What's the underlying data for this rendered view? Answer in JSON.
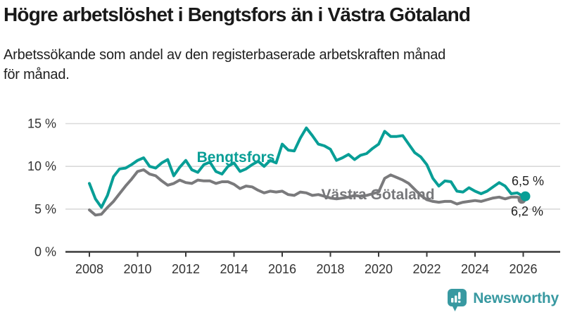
{
  "page": {
    "title": "Högre arbetslöshet i Bengtsfors än i Västra Götaland",
    "subtitle_lines": [
      "Arbetssökande som andel av den registerbaserade arbetskraften månad",
      "för månad."
    ]
  },
  "branding": {
    "wordmark": "Newsworthy",
    "icon": "bar-chart-speech-bubble",
    "color": "#3899a1"
  },
  "chart_data": {
    "type": "line",
    "title": "Högre arbetslöshet i Bengtsfors än i Västra Götaland",
    "subtitle": "Arbetssökande som andel av den registerbaserade arbetskraften månad för månad.",
    "unit": "percent of registered labour force",
    "grid": true,
    "legend_position": "inline-labels",
    "x_axis": {
      "tick_labels": [
        "2008",
        "2010",
        "2012",
        "2014",
        "2016",
        "2018",
        "2020",
        "2022",
        "2024",
        "2026"
      ],
      "tick_years": [
        2008,
        2010,
        2012,
        2014,
        2016,
        2018,
        2020,
        2022,
        2024,
        2026
      ],
      "range": [
        2008,
        2026.25
      ]
    },
    "y_axis": {
      "tick_labels": [
        "0 %",
        "5 %",
        "10 %",
        "15 %"
      ],
      "tick_values": [
        0,
        5,
        10,
        15
      ],
      "range": [
        0,
        15.5
      ]
    },
    "series": [
      {
        "name": "Bengtsfors",
        "color": "#089e96",
        "start_year": 2008,
        "step_years": 0.25,
        "end_label": "6,5 %",
        "last_value": 6.5,
        "values": [
          8.0,
          6.2,
          5.2,
          6.6,
          8.8,
          9.7,
          9.8,
          10.2,
          10.7,
          11.0,
          10.0,
          9.8,
          10.4,
          10.8,
          8.9,
          9.9,
          10.7,
          9.6,
          9.3,
          10.2,
          10.5,
          9.4,
          9.1,
          10.0,
          10.4,
          9.4,
          9.7,
          10.2,
          10.6,
          10.0,
          10.7,
          10.4,
          12.6,
          11.9,
          11.8,
          13.3,
          14.5,
          13.6,
          12.6,
          12.4,
          12.0,
          10.7,
          11.0,
          11.4,
          10.8,
          11.3,
          11.5,
          12.1,
          12.6,
          14.1,
          13.5,
          13.5,
          13.6,
          12.6,
          11.6,
          11.1,
          10.2,
          8.6,
          7.7,
          8.3,
          8.2,
          7.1,
          7.0,
          7.5,
          7.1,
          6.8,
          7.1,
          7.6,
          8.1,
          7.7,
          6.8,
          6.9,
          6.5
        ]
      },
      {
        "name": "Västra Götaland",
        "color": "#7a7a7c",
        "start_year": 2008,
        "step_years": 0.25,
        "end_label": "6,2 %",
        "last_value": 6.2,
        "values": [
          4.9,
          4.3,
          4.4,
          5.2,
          5.9,
          6.8,
          7.7,
          8.5,
          9.4,
          9.6,
          9.1,
          8.9,
          8.3,
          7.8,
          8.0,
          8.4,
          8.1,
          8.0,
          8.4,
          8.3,
          8.3,
          8.0,
          8.2,
          8.2,
          7.9,
          7.4,
          7.7,
          7.6,
          7.2,
          6.9,
          7.1,
          7.0,
          7.1,
          6.7,
          6.6,
          7.0,
          6.9,
          6.6,
          6.7,
          6.5,
          6.3,
          6.2,
          6.3,
          6.4,
          6.6,
          6.5,
          6.6,
          6.8,
          7.0,
          8.6,
          9.0,
          8.7,
          8.4,
          8.0,
          7.3,
          6.6,
          6.1,
          5.9,
          5.8,
          5.9,
          5.9,
          5.6,
          5.8,
          5.9,
          6.0,
          5.9,
          6.1,
          6.3,
          6.4,
          6.2,
          6.4,
          6.4,
          6.2
        ]
      }
    ]
  }
}
